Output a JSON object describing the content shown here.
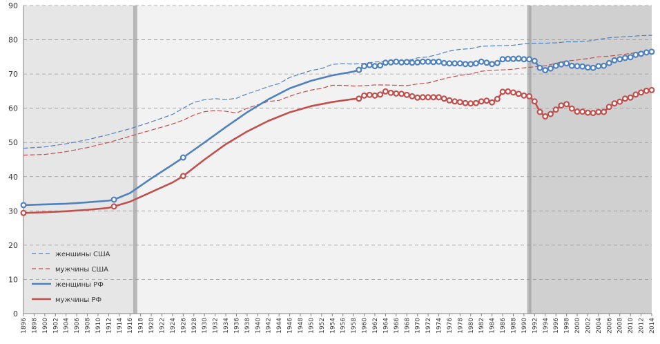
{
  "chart_data": {
    "type": "line",
    "title": "",
    "xlabel": "",
    "ylabel": "",
    "xlim": [
      1896,
      2014
    ],
    "ylim": [
      0,
      90
    ],
    "y_ticks": [
      0,
      10,
      20,
      30,
      40,
      50,
      60,
      70,
      80,
      90
    ],
    "x_ticks": [
      1896,
      1898,
      1900,
      1902,
      1904,
      1906,
      1908,
      1910,
      1912,
      1914,
      1916,
      1918,
      1920,
      1922,
      1924,
      1926,
      1928,
      1930,
      1932,
      1934,
      1936,
      1938,
      1940,
      1942,
      1944,
      1946,
      1948,
      1950,
      1952,
      1954,
      1956,
      1958,
      1960,
      1962,
      1964,
      1966,
      1968,
      1970,
      1972,
      1974,
      1976,
      1978,
      1980,
      1982,
      1984,
      1986,
      1988,
      1990,
      1992,
      1994,
      1996,
      1998,
      2000,
      2002,
      2004,
      2006,
      2008,
      2010,
      2012,
      2014
    ],
    "grid": "horizontal dashed",
    "legend_position": "bottom-left",
    "shaded_periods": [
      {
        "from": 1896,
        "to": 1917,
        "color": "#e6e6e6"
      },
      {
        "from": 1917,
        "to": 1991,
        "color": "#f2f2f2"
      },
      {
        "from": 1991,
        "to": 2014,
        "color": "#d0d0d0"
      }
    ],
    "series": [
      {
        "name": "женшины США",
        "color": "#4f81bd",
        "style": "dashed",
        "points": [
          [
            1896,
            48.3
          ],
          [
            1900,
            48.7
          ],
          [
            1904,
            49.6
          ],
          [
            1908,
            50.8
          ],
          [
            1912,
            52.3
          ],
          [
            1916,
            54.0
          ],
          [
            1920,
            56.0
          ],
          [
            1924,
            58.2
          ],
          [
            1926,
            60.0
          ],
          [
            1928,
            61.7
          ],
          [
            1930,
            62.5
          ],
          [
            1932,
            62.8
          ],
          [
            1934,
            62.5
          ],
          [
            1936,
            62.9
          ],
          [
            1938,
            64.2
          ],
          [
            1940,
            65.2
          ],
          [
            1942,
            66.3
          ],
          [
            1944,
            67.2
          ],
          [
            1946,
            69.0
          ],
          [
            1948,
            70.0
          ],
          [
            1950,
            71.0
          ],
          [
            1952,
            71.6
          ],
          [
            1954,
            72.8
          ],
          [
            1956,
            73.0
          ],
          [
            1958,
            72.9
          ],
          [
            1960,
            73.1
          ],
          [
            1962,
            73.5
          ],
          [
            1964,
            73.7
          ],
          [
            1966,
            73.8
          ],
          [
            1968,
            73.8
          ],
          [
            1970,
            74.7
          ],
          [
            1972,
            75.0
          ],
          [
            1974,
            75.8
          ],
          [
            1976,
            76.7
          ],
          [
            1978,
            77.2
          ],
          [
            1980,
            77.4
          ],
          [
            1982,
            78.1
          ],
          [
            1984,
            78.2
          ],
          [
            1986,
            78.3
          ],
          [
            1988,
            78.4
          ],
          [
            1990,
            78.8
          ],
          [
            1992,
            79.0
          ],
          [
            1994,
            79.0
          ],
          [
            1996,
            79.1
          ],
          [
            1998,
            79.4
          ],
          [
            2000,
            79.4
          ],
          [
            2002,
            79.6
          ],
          [
            2004,
            80.1
          ],
          [
            2006,
            80.6
          ],
          [
            2008,
            80.8
          ],
          [
            2010,
            81.0
          ],
          [
            2012,
            81.2
          ],
          [
            2014,
            81.3
          ]
        ]
      },
      {
        "name": "мужчины США",
        "color": "#c0504d",
        "style": "dashed",
        "points": [
          [
            1896,
            46.3
          ],
          [
            1900,
            46.5
          ],
          [
            1904,
            47.3
          ],
          [
            1908,
            48.5
          ],
          [
            1912,
            50.0
          ],
          [
            1916,
            51.8
          ],
          [
            1920,
            53.6
          ],
          [
            1924,
            55.4
          ],
          [
            1926,
            56.5
          ],
          [
            1928,
            58.0
          ],
          [
            1930,
            59.0
          ],
          [
            1932,
            59.3
          ],
          [
            1934,
            59.1
          ],
          [
            1936,
            58.6
          ],
          [
            1938,
            60.0
          ],
          [
            1940,
            61.0
          ],
          [
            1942,
            62.0
          ],
          [
            1944,
            62.3
          ],
          [
            1946,
            63.5
          ],
          [
            1948,
            64.5
          ],
          [
            1950,
            65.3
          ],
          [
            1952,
            65.8
          ],
          [
            1954,
            66.7
          ],
          [
            1956,
            66.7
          ],
          [
            1958,
            66.5
          ],
          [
            1960,
            66.6
          ],
          [
            1962,
            66.8
          ],
          [
            1964,
            66.8
          ],
          [
            1966,
            66.7
          ],
          [
            1968,
            66.6
          ],
          [
            1970,
            67.1
          ],
          [
            1972,
            67.4
          ],
          [
            1974,
            68.2
          ],
          [
            1976,
            69.0
          ],
          [
            1978,
            69.6
          ],
          [
            1980,
            70.0
          ],
          [
            1982,
            70.8
          ],
          [
            1984,
            71.1
          ],
          [
            1986,
            71.2
          ],
          [
            1988,
            71.4
          ],
          [
            1990,
            71.8
          ],
          [
            1992,
            72.1
          ],
          [
            1994,
            72.4
          ],
          [
            1996,
            73.1
          ],
          [
            1998,
            73.8
          ],
          [
            2000,
            74.1
          ],
          [
            2002,
            74.5
          ],
          [
            2004,
            75.0
          ],
          [
            2006,
            75.2
          ],
          [
            2008,
            75.6
          ],
          [
            2010,
            76.0
          ],
          [
            2012,
            76.4
          ],
          [
            2014,
            76.4
          ]
        ]
      },
      {
        "name": "женщины РФ",
        "color": "#4f81bd",
        "style": "solid",
        "points": [
          [
            1896,
            31.7
          ],
          [
            1900,
            31.9
          ],
          [
            1904,
            32.1
          ],
          [
            1908,
            32.5
          ],
          [
            1912,
            33.0
          ],
          [
            1913,
            33.3
          ],
          [
            1916,
            35.2
          ],
          [
            1920,
            39.5
          ],
          [
            1924,
            43.5
          ],
          [
            1926,
            45.6
          ],
          [
            1930,
            50.0
          ],
          [
            1934,
            54.5
          ],
          [
            1938,
            58.8
          ],
          [
            1942,
            62.6
          ],
          [
            1946,
            65.8
          ],
          [
            1950,
            68.0
          ],
          [
            1954,
            69.6
          ],
          [
            1958,
            70.7
          ],
          [
            1959,
            71.2
          ],
          [
            1960,
            72.3
          ],
          [
            1961,
            72.6
          ],
          [
            1962,
            72.3
          ],
          [
            1963,
            72.5
          ],
          [
            1964,
            73.3
          ],
          [
            1965,
            73.4
          ],
          [
            1966,
            73.6
          ],
          [
            1967,
            73.4
          ],
          [
            1968,
            73.5
          ],
          [
            1969,
            73.3
          ],
          [
            1970,
            73.4
          ],
          [
            1971,
            73.6
          ],
          [
            1972,
            73.6
          ],
          [
            1973,
            73.5
          ],
          [
            1974,
            73.6
          ],
          [
            1975,
            73.2
          ],
          [
            1976,
            73.1
          ],
          [
            1977,
            73.1
          ],
          [
            1978,
            73.1
          ],
          [
            1979,
            72.9
          ],
          [
            1980,
            72.9
          ],
          [
            1981,
            73.1
          ],
          [
            1982,
            73.6
          ],
          [
            1983,
            73.3
          ],
          [
            1984,
            72.9
          ],
          [
            1985,
            73.2
          ],
          [
            1986,
            74.3
          ],
          [
            1987,
            74.4
          ],
          [
            1988,
            74.4
          ],
          [
            1989,
            74.5
          ],
          [
            1990,
            74.3
          ],
          [
            1991,
            74.3
          ],
          [
            1992,
            73.8
          ],
          [
            1993,
            71.8
          ],
          [
            1994,
            71.1
          ],
          [
            1995,
            71.6
          ],
          [
            1996,
            72.4
          ],
          [
            1997,
            72.8
          ],
          [
            1998,
            73.1
          ],
          [
            1999,
            72.4
          ],
          [
            2000,
            72.3
          ],
          [
            2001,
            72.2
          ],
          [
            2002,
            71.9
          ],
          [
            2003,
            71.8
          ],
          [
            2004,
            72.3
          ],
          [
            2005,
            72.4
          ],
          [
            2006,
            73.2
          ],
          [
            2007,
            74.0
          ],
          [
            2008,
            74.3
          ],
          [
            2009,
            74.7
          ],
          [
            2010,
            74.9
          ],
          [
            2011,
            75.6
          ],
          [
            2012,
            75.9
          ],
          [
            2013,
            76.3
          ],
          [
            2014,
            76.5
          ]
        ]
      },
      {
        "name": "мужчины РФ",
        "color": "#c0504d",
        "style": "solid",
        "points": [
          [
            1896,
            29.4
          ],
          [
            1900,
            29.6
          ],
          [
            1904,
            29.9
          ],
          [
            1908,
            30.3
          ],
          [
            1912,
            30.9
          ],
          [
            1913,
            31.3
          ],
          [
            1916,
            32.7
          ],
          [
            1920,
            35.5
          ],
          [
            1924,
            38.3
          ],
          [
            1926,
            40.2
          ],
          [
            1930,
            45.0
          ],
          [
            1934,
            49.5
          ],
          [
            1938,
            53.2
          ],
          [
            1942,
            56.3
          ],
          [
            1946,
            58.8
          ],
          [
            1950,
            60.6
          ],
          [
            1954,
            61.8
          ],
          [
            1958,
            62.7
          ],
          [
            1959,
            62.8
          ],
          [
            1960,
            63.7
          ],
          [
            1961,
            63.9
          ],
          [
            1962,
            63.7
          ],
          [
            1963,
            64.0
          ],
          [
            1964,
            64.9
          ],
          [
            1965,
            64.5
          ],
          [
            1966,
            64.3
          ],
          [
            1967,
            64.2
          ],
          [
            1968,
            63.9
          ],
          [
            1969,
            63.5
          ],
          [
            1970,
            63.1
          ],
          [
            1971,
            63.2
          ],
          [
            1972,
            63.2
          ],
          [
            1973,
            63.2
          ],
          [
            1974,
            63.2
          ],
          [
            1975,
            62.8
          ],
          [
            1976,
            62.3
          ],
          [
            1977,
            62.0
          ],
          [
            1978,
            61.8
          ],
          [
            1979,
            61.5
          ],
          [
            1980,
            61.4
          ],
          [
            1981,
            61.5
          ],
          [
            1982,
            62.0
          ],
          [
            1983,
            62.2
          ],
          [
            1984,
            61.7
          ],
          [
            1985,
            62.7
          ],
          [
            1986,
            64.8
          ],
          [
            1987,
            64.9
          ],
          [
            1988,
            64.6
          ],
          [
            1989,
            64.2
          ],
          [
            1990,
            63.7
          ],
          [
            1991,
            63.5
          ],
          [
            1992,
            62.0
          ],
          [
            1993,
            58.9
          ],
          [
            1994,
            57.6
          ],
          [
            1995,
            58.3
          ],
          [
            1996,
            59.6
          ],
          [
            1997,
            60.8
          ],
          [
            1998,
            61.2
          ],
          [
            1999,
            59.9
          ],
          [
            2000,
            59.0
          ],
          [
            2001,
            59.0
          ],
          [
            2002,
            58.7
          ],
          [
            2003,
            58.6
          ],
          [
            2004,
            58.9
          ],
          [
            2005,
            58.9
          ],
          [
            2006,
            60.4
          ],
          [
            2007,
            61.4
          ],
          [
            2008,
            61.9
          ],
          [
            2009,
            62.8
          ],
          [
            2010,
            63.1
          ],
          [
            2011,
            64.0
          ],
          [
            2012,
            64.6
          ],
          [
            2013,
            65.1
          ],
          [
            2014,
            65.3
          ]
        ]
      }
    ]
  }
}
